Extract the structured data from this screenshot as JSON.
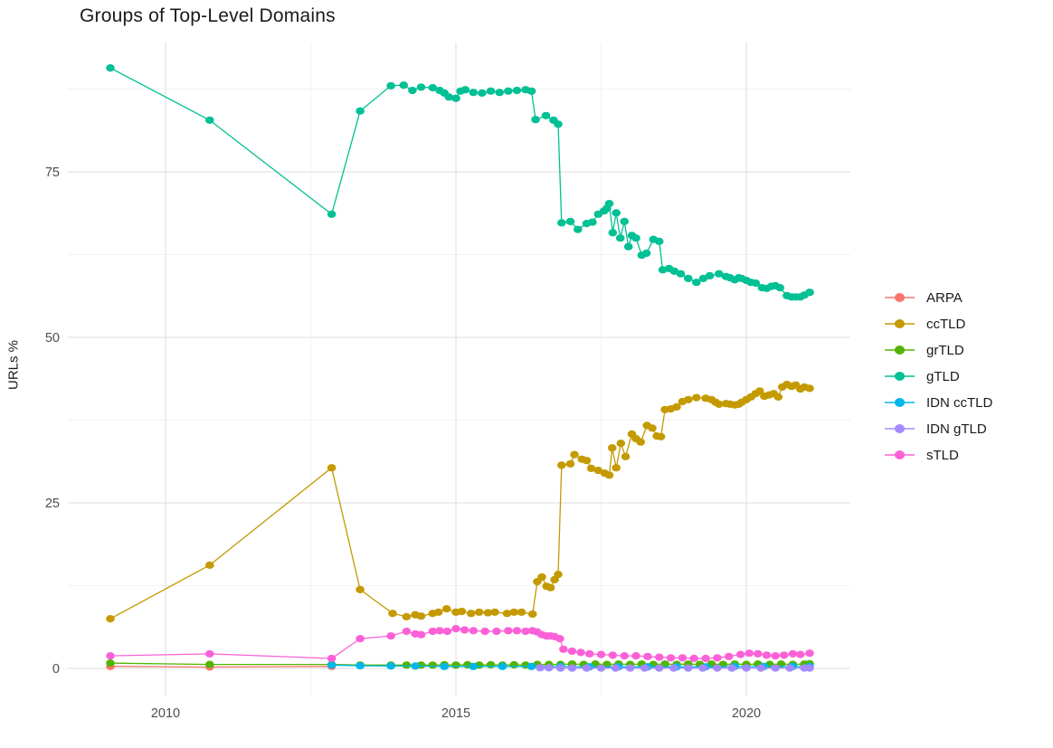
{
  "title": "Groups of Top-Level Domains",
  "chart_data": {
    "type": "line",
    "title": "Groups of Top-Level Domains",
    "xlabel": "",
    "ylabel": "URLs %",
    "x_ticks": [
      2010,
      2015,
      2020
    ],
    "x_minor_ticks": [
      2012.5,
      2017.5
    ],
    "y_ticks": [
      0,
      25,
      50,
      75
    ],
    "y_minor_ticks": [
      12.5,
      37.5,
      62.5,
      87.5
    ],
    "xlim": [
      2008.3,
      2021.8
    ],
    "ylim": [
      -4.2,
      94.5
    ],
    "grid": "on",
    "legend_position": "right",
    "series": [
      {
        "name": "ARPA",
        "color": "#F8766D",
        "points": [
          [
            2009.05,
            0.3
          ],
          [
            2010.76,
            0.2
          ],
          [
            2012.86,
            0.3
          ]
        ]
      },
      {
        "name": "ccTLD",
        "color": "#C49A00",
        "points": [
          [
            2009.05,
            7.5
          ],
          [
            2010.76,
            15.6
          ],
          [
            2012.86,
            30.3
          ],
          [
            2013.35,
            11.9
          ],
          [
            2013.91,
            8.3
          ],
          [
            2014.15,
            7.8
          ],
          [
            2014.3,
            8.1
          ],
          [
            2014.4,
            7.9
          ],
          [
            2014.6,
            8.3
          ],
          [
            2014.7,
            8.5
          ],
          [
            2014.84,
            9.0
          ],
          [
            2015.0,
            8.5
          ],
          [
            2015.1,
            8.6
          ],
          [
            2015.26,
            8.3
          ],
          [
            2015.4,
            8.5
          ],
          [
            2015.55,
            8.4
          ],
          [
            2015.67,
            8.5
          ],
          [
            2015.88,
            8.3
          ],
          [
            2016.0,
            8.5
          ],
          [
            2016.13,
            8.5
          ],
          [
            2016.32,
            8.2
          ],
          [
            2016.4,
            13.1
          ],
          [
            2016.48,
            13.8
          ],
          [
            2016.56,
            12.4
          ],
          [
            2016.63,
            12.2
          ],
          [
            2016.7,
            13.4
          ],
          [
            2016.76,
            14.2
          ],
          [
            2016.82,
            30.7
          ],
          [
            2016.97,
            30.9
          ],
          [
            2017.04,
            32.3
          ],
          [
            2017.17,
            31.6
          ],
          [
            2017.25,
            31.4
          ],
          [
            2017.33,
            30.2
          ],
          [
            2017.45,
            29.9
          ],
          [
            2017.56,
            29.5
          ],
          [
            2017.64,
            29.2
          ],
          [
            2017.69,
            33.3
          ],
          [
            2017.76,
            30.3
          ],
          [
            2017.84,
            34.0
          ],
          [
            2017.92,
            32.0
          ],
          [
            2018.03,
            35.4
          ],
          [
            2018.1,
            34.7
          ],
          [
            2018.18,
            34.2
          ],
          [
            2018.29,
            36.7
          ],
          [
            2018.38,
            36.3
          ],
          [
            2018.46,
            35.1
          ],
          [
            2018.53,
            35.0
          ],
          [
            2018.6,
            39.1
          ],
          [
            2018.7,
            39.2
          ],
          [
            2018.8,
            39.5
          ],
          [
            2018.9,
            40.3
          ],
          [
            2019.0,
            40.6
          ],
          [
            2019.14,
            40.9
          ],
          [
            2019.3,
            40.8
          ],
          [
            2019.4,
            40.6
          ],
          [
            2019.47,
            40.2
          ],
          [
            2019.53,
            39.9
          ],
          [
            2019.65,
            40.0
          ],
          [
            2019.72,
            39.9
          ],
          [
            2019.8,
            39.8
          ],
          [
            2019.87,
            39.9
          ],
          [
            2019.92,
            40.2
          ],
          [
            2020.0,
            40.6
          ],
          [
            2020.08,
            41.0
          ],
          [
            2020.16,
            41.5
          ],
          [
            2020.23,
            41.9
          ],
          [
            2020.31,
            41.1
          ],
          [
            2020.39,
            41.3
          ],
          [
            2020.47,
            41.5
          ],
          [
            2020.55,
            41.0
          ],
          [
            2020.62,
            42.5
          ],
          [
            2020.7,
            42.9
          ],
          [
            2020.78,
            42.6
          ],
          [
            2020.85,
            42.8
          ],
          [
            2020.93,
            42.2
          ],
          [
            2021.0,
            42.5
          ],
          [
            2021.09,
            42.3
          ]
        ]
      },
      {
        "name": "grTLD",
        "color": "#53B400",
        "points": [
          [
            2009.05,
            0.8
          ],
          [
            2010.76,
            0.6
          ],
          [
            2012.86,
            0.6
          ],
          [
            2013.35,
            0.5
          ],
          [
            2013.88,
            0.5
          ],
          [
            2014.15,
            0.5
          ],
          [
            2014.4,
            0.5
          ],
          [
            2014.6,
            0.5
          ],
          [
            2014.8,
            0.55
          ],
          [
            2015.0,
            0.5
          ],
          [
            2015.2,
            0.55
          ],
          [
            2015.4,
            0.5
          ],
          [
            2015.6,
            0.55
          ],
          [
            2015.8,
            0.5
          ],
          [
            2016.0,
            0.55
          ],
          [
            2016.2,
            0.5
          ],
          [
            2016.4,
            0.6
          ],
          [
            2016.6,
            0.6
          ],
          [
            2016.8,
            0.6
          ],
          [
            2017.0,
            0.65
          ],
          [
            2017.2,
            0.6
          ],
          [
            2017.4,
            0.65
          ],
          [
            2017.6,
            0.6
          ],
          [
            2017.8,
            0.65
          ],
          [
            2018.0,
            0.6
          ],
          [
            2018.2,
            0.65
          ],
          [
            2018.4,
            0.6
          ],
          [
            2018.6,
            0.65
          ],
          [
            2018.8,
            0.6
          ],
          [
            2019.0,
            0.65
          ],
          [
            2019.2,
            0.6
          ],
          [
            2019.4,
            0.65
          ],
          [
            2019.6,
            0.6
          ],
          [
            2019.8,
            0.65
          ],
          [
            2020.0,
            0.6
          ],
          [
            2020.2,
            0.65
          ],
          [
            2020.4,
            0.6
          ],
          [
            2020.6,
            0.65
          ],
          [
            2020.8,
            0.6
          ],
          [
            2021.0,
            0.65
          ],
          [
            2021.09,
            0.7
          ]
        ]
      },
      {
        "name": "gTLD",
        "color": "#00C094",
        "points": [
          [
            2009.05,
            90.7
          ],
          [
            2010.76,
            82.8
          ],
          [
            2012.86,
            68.6
          ],
          [
            2013.35,
            84.2
          ],
          [
            2013.88,
            88.0
          ],
          [
            2014.1,
            88.1
          ],
          [
            2014.25,
            87.3
          ],
          [
            2014.4,
            87.8
          ],
          [
            2014.6,
            87.7
          ],
          [
            2014.72,
            87.3
          ],
          [
            2014.8,
            86.9
          ],
          [
            2014.88,
            86.3
          ],
          [
            2015.0,
            86.1
          ],
          [
            2015.08,
            87.2
          ],
          [
            2015.16,
            87.4
          ],
          [
            2015.3,
            87.0
          ],
          [
            2015.45,
            86.9
          ],
          [
            2015.6,
            87.2
          ],
          [
            2015.75,
            87.0
          ],
          [
            2015.9,
            87.2
          ],
          [
            2016.05,
            87.3
          ],
          [
            2016.2,
            87.4
          ],
          [
            2016.3,
            87.2
          ],
          [
            2016.37,
            82.9
          ],
          [
            2016.55,
            83.5
          ],
          [
            2016.68,
            82.8
          ],
          [
            2016.76,
            82.2
          ],
          [
            2016.82,
            67.3
          ],
          [
            2016.97,
            67.5
          ],
          [
            2017.1,
            66.3
          ],
          [
            2017.25,
            67.2
          ],
          [
            2017.35,
            67.4
          ],
          [
            2017.45,
            68.6
          ],
          [
            2017.55,
            69.1
          ],
          [
            2017.6,
            69.5
          ],
          [
            2017.64,
            70.2
          ],
          [
            2017.7,
            65.8
          ],
          [
            2017.76,
            68.8
          ],
          [
            2017.83,
            65.0
          ],
          [
            2017.9,
            67.5
          ],
          [
            2017.97,
            63.7
          ],
          [
            2018.03,
            65.4
          ],
          [
            2018.1,
            65.0
          ],
          [
            2018.2,
            62.4
          ],
          [
            2018.28,
            62.7
          ],
          [
            2018.4,
            64.8
          ],
          [
            2018.5,
            64.5
          ],
          [
            2018.56,
            60.2
          ],
          [
            2018.67,
            60.4
          ],
          [
            2018.76,
            60.0
          ],
          [
            2018.87,
            59.6
          ],
          [
            2019.0,
            58.9
          ],
          [
            2019.14,
            58.3
          ],
          [
            2019.26,
            58.9
          ],
          [
            2019.37,
            59.3
          ],
          [
            2019.53,
            59.6
          ],
          [
            2019.65,
            59.2
          ],
          [
            2019.72,
            59.0
          ],
          [
            2019.8,
            58.7
          ],
          [
            2019.87,
            59.0
          ],
          [
            2019.92,
            58.9
          ],
          [
            2020.0,
            58.6
          ],
          [
            2020.08,
            58.3
          ],
          [
            2020.16,
            58.2
          ],
          [
            2020.27,
            57.5
          ],
          [
            2020.35,
            57.4
          ],
          [
            2020.43,
            57.7
          ],
          [
            2020.5,
            57.8
          ],
          [
            2020.58,
            57.5
          ],
          [
            2020.7,
            56.3
          ],
          [
            2020.78,
            56.1
          ],
          [
            2020.85,
            56.1
          ],
          [
            2020.93,
            56.1
          ],
          [
            2021.0,
            56.4
          ],
          [
            2021.09,
            56.8
          ]
        ]
      },
      {
        "name": "IDN ccTLD",
        "color": "#00B6EB",
        "points": [
          [
            2012.86,
            0.5
          ],
          [
            2013.35,
            0.4
          ],
          [
            2013.88,
            0.35
          ],
          [
            2014.3,
            0.35
          ],
          [
            2014.8,
            0.3
          ],
          [
            2015.3,
            0.3
          ],
          [
            2015.8,
            0.3
          ],
          [
            2016.3,
            0.3
          ],
          [
            2016.8,
            0.3
          ],
          [
            2017.3,
            0.25
          ],
          [
            2017.8,
            0.25
          ],
          [
            2018.3,
            0.25
          ],
          [
            2018.8,
            0.25
          ],
          [
            2019.3,
            0.25
          ],
          [
            2019.8,
            0.3
          ],
          [
            2020.3,
            0.3
          ],
          [
            2020.8,
            0.3
          ],
          [
            2021.09,
            0.3
          ]
        ]
      },
      {
        "name": "IDN gTLD",
        "color": "#A58AFF",
        "points": [
          [
            2016.45,
            0.1
          ],
          [
            2016.6,
            0.08
          ],
          [
            2016.8,
            0.05
          ],
          [
            2017.0,
            0.05
          ],
          [
            2017.25,
            0.05
          ],
          [
            2017.5,
            0.05
          ],
          [
            2017.75,
            0.05
          ],
          [
            2018.0,
            0.05
          ],
          [
            2018.25,
            0.05
          ],
          [
            2018.5,
            0.05
          ],
          [
            2018.75,
            0.05
          ],
          [
            2019.0,
            0.05
          ],
          [
            2019.25,
            0.05
          ],
          [
            2019.5,
            0.05
          ],
          [
            2019.75,
            0.05
          ],
          [
            2020.0,
            0.05
          ],
          [
            2020.25,
            0.05
          ],
          [
            2020.5,
            0.05
          ],
          [
            2020.75,
            0.05
          ],
          [
            2021.0,
            0.05
          ],
          [
            2021.09,
            0.05
          ]
        ]
      },
      {
        "name": "sTLD",
        "color": "#FB61D7",
        "points": [
          [
            2009.05,
            1.9
          ],
          [
            2010.76,
            2.2
          ],
          [
            2012.86,
            1.5
          ],
          [
            2013.35,
            4.5
          ],
          [
            2013.88,
            4.9
          ],
          [
            2014.15,
            5.6
          ],
          [
            2014.3,
            5.2
          ],
          [
            2014.4,
            5.1
          ],
          [
            2014.6,
            5.6
          ],
          [
            2014.72,
            5.7
          ],
          [
            2014.85,
            5.6
          ],
          [
            2015.0,
            6.0
          ],
          [
            2015.15,
            5.8
          ],
          [
            2015.3,
            5.7
          ],
          [
            2015.5,
            5.6
          ],
          [
            2015.7,
            5.6
          ],
          [
            2015.9,
            5.7
          ],
          [
            2016.05,
            5.7
          ],
          [
            2016.2,
            5.6
          ],
          [
            2016.32,
            5.7
          ],
          [
            2016.4,
            5.5
          ],
          [
            2016.48,
            5.1
          ],
          [
            2016.56,
            4.9
          ],
          [
            2016.63,
            4.9
          ],
          [
            2016.7,
            4.8
          ],
          [
            2016.79,
            4.5
          ],
          [
            2016.85,
            2.9
          ],
          [
            2017.0,
            2.6
          ],
          [
            2017.15,
            2.4
          ],
          [
            2017.3,
            2.2
          ],
          [
            2017.5,
            2.1
          ],
          [
            2017.7,
            2.0
          ],
          [
            2017.9,
            1.9
          ],
          [
            2018.1,
            1.9
          ],
          [
            2018.3,
            1.8
          ],
          [
            2018.5,
            1.7
          ],
          [
            2018.7,
            1.6
          ],
          [
            2018.9,
            1.6
          ],
          [
            2019.1,
            1.5
          ],
          [
            2019.3,
            1.5
          ],
          [
            2019.5,
            1.6
          ],
          [
            2019.7,
            1.8
          ],
          [
            2019.9,
            2.1
          ],
          [
            2020.05,
            2.3
          ],
          [
            2020.2,
            2.2
          ],
          [
            2020.35,
            2.0
          ],
          [
            2020.5,
            1.9
          ],
          [
            2020.65,
            2.0
          ],
          [
            2020.8,
            2.2
          ],
          [
            2020.93,
            2.1
          ],
          [
            2021.09,
            2.3
          ]
        ]
      }
    ]
  }
}
